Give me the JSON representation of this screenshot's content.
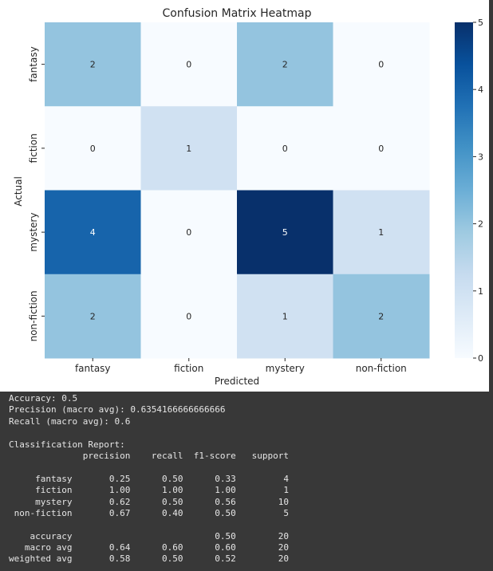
{
  "chart_data": {
    "type": "heatmap",
    "title": "Confusion Matrix Heatmap",
    "xlabel": "Predicted",
    "ylabel": "Actual",
    "x_categories": [
      "fantasy",
      "fiction",
      "mystery",
      "non-fiction"
    ],
    "y_categories": [
      "fantasy",
      "fiction",
      "mystery",
      "non-fiction"
    ],
    "values": [
      [
        2,
        0,
        2,
        0
      ],
      [
        0,
        1,
        0,
        0
      ],
      [
        4,
        0,
        5,
        1
      ],
      [
        2,
        0,
        1,
        2
      ]
    ],
    "colorbar": {
      "range": [
        0,
        5
      ],
      "ticks": [
        "0",
        "1",
        "2",
        "3",
        "4",
        "5"
      ],
      "colormap": "Blues"
    }
  },
  "colors": {
    "low": "#f7fbff",
    "high": "#08306b",
    "text_dark": "#262626",
    "text_light": "#ffffff",
    "output_background": "#383838",
    "output_text": "#e6e6e6"
  },
  "output": {
    "lines": [
      "Accuracy: 0.5",
      "Precision (macro avg): 0.6354166666666666",
      "Recall (macro avg): 0.6",
      "",
      "Classification Report:",
      "              precision    recall  f1-score   support",
      "",
      "     fantasy       0.25      0.50      0.33         4",
      "     fiction       1.00      1.00      1.00         1",
      "     mystery       0.62      0.50      0.56        10",
      " non-fiction       0.67      0.40      0.50         5",
      "",
      "    accuracy                           0.50        20",
      "   macro avg       0.64      0.60      0.60        20",
      "weighted avg       0.58      0.50      0.52        20"
    ]
  }
}
